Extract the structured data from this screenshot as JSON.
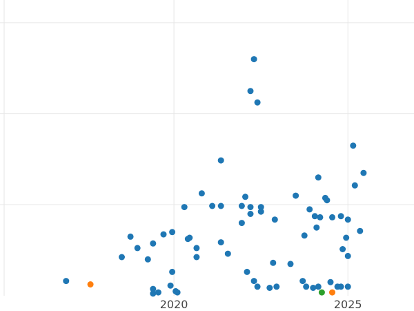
{
  "chart_data": {
    "type": "scatter",
    "title": "",
    "xlabel": "",
    "ylabel": "",
    "grid": true,
    "legend": "none",
    "xlim": [
      2015.0,
      2026.9
    ],
    "ylim": [
      0,
      13
    ],
    "x_ticks": [
      {
        "value": 2020,
        "label": "2020"
      },
      {
        "value": 2025,
        "label": "2025"
      }
    ],
    "y_gridlines": [
      4,
      8,
      12
    ],
    "colors": {
      "blue": "#1f77b4",
      "orange": "#ff7f0e",
      "green": "#2ca02c",
      "grid": "#e6e6e6",
      "tick_text": "#444444"
    },
    "series": [
      {
        "color": "#1f77b4",
        "points": [
          [
            2016.9,
            0.65
          ],
          [
            2018.5,
            1.7
          ],
          [
            2018.75,
            2.6
          ],
          [
            2018.95,
            2.1
          ],
          [
            2019.25,
            1.6
          ],
          [
            2019.4,
            2.3
          ],
          [
            2019.4,
            0.3
          ],
          [
            2019.4,
            0.1
          ],
          [
            2019.55,
            0.15
          ],
          [
            2019.7,
            2.7
          ],
          [
            2019.9,
            0.45
          ],
          [
            2019.95,
            1.05
          ],
          [
            2019.95,
            2.8
          ],
          [
            2020.05,
            0.2
          ],
          [
            2020.1,
            0.15
          ],
          [
            2020.3,
            3.9
          ],
          [
            2020.4,
            2.5
          ],
          [
            2020.45,
            2.55
          ],
          [
            2020.65,
            1.7
          ],
          [
            2020.65,
            2.1
          ],
          [
            2020.8,
            4.5
          ],
          [
            2021.1,
            3.95
          ],
          [
            2021.35,
            3.95
          ],
          [
            2021.35,
            5.95
          ],
          [
            2021.35,
            2.35
          ],
          [
            2021.55,
            1.85
          ],
          [
            2021.95,
            3.95
          ],
          [
            2021.95,
            3.2
          ],
          [
            2022.05,
            4.35
          ],
          [
            2022.1,
            1.05
          ],
          [
            2022.2,
            3.9
          ],
          [
            2022.2,
            3.6
          ],
          [
            2022.2,
            9.0
          ],
          [
            2022.3,
            10.4
          ],
          [
            2022.3,
            0.65
          ],
          [
            2022.4,
            8.5
          ],
          [
            2022.4,
            0.4
          ],
          [
            2022.5,
            3.9
          ],
          [
            2022.5,
            3.7
          ],
          [
            2022.75,
            0.35
          ],
          [
            2022.85,
            1.45
          ],
          [
            2022.9,
            3.35
          ],
          [
            2022.95,
            0.4
          ],
          [
            2023.35,
            1.4
          ],
          [
            2023.5,
            4.4
          ],
          [
            2023.7,
            0.65
          ],
          [
            2023.75,
            2.65
          ],
          [
            2023.8,
            0.4
          ],
          [
            2023.9,
            3.8
          ],
          [
            2024.0,
            0.35
          ],
          [
            2024.05,
            3.5
          ],
          [
            2024.1,
            3.0
          ],
          [
            2024.15,
            5.2
          ],
          [
            2024.15,
            0.4
          ],
          [
            2024.2,
            3.45
          ],
          [
            2024.35,
            4.3
          ],
          [
            2024.4,
            4.2
          ],
          [
            2024.5,
            0.6
          ],
          [
            2024.55,
            3.45
          ],
          [
            2024.7,
            0.4
          ],
          [
            2024.8,
            0.4
          ],
          [
            2024.8,
            3.5
          ],
          [
            2024.85,
            2.05
          ],
          [
            2024.95,
            2.55
          ],
          [
            2025.0,
            3.35
          ],
          [
            2025.0,
            1.75
          ],
          [
            2025.0,
            0.4
          ],
          [
            2025.15,
            6.6
          ],
          [
            2025.2,
            4.85
          ],
          [
            2025.35,
            2.85
          ],
          [
            2025.45,
            5.4
          ]
        ]
      },
      {
        "color": "#ff7f0e",
        "points": [
          [
            2017.6,
            0.5
          ],
          [
            2024.55,
            0.15
          ]
        ]
      },
      {
        "color": "#2ca02c",
        "points": [
          [
            2024.25,
            0.15
          ]
        ]
      }
    ]
  }
}
